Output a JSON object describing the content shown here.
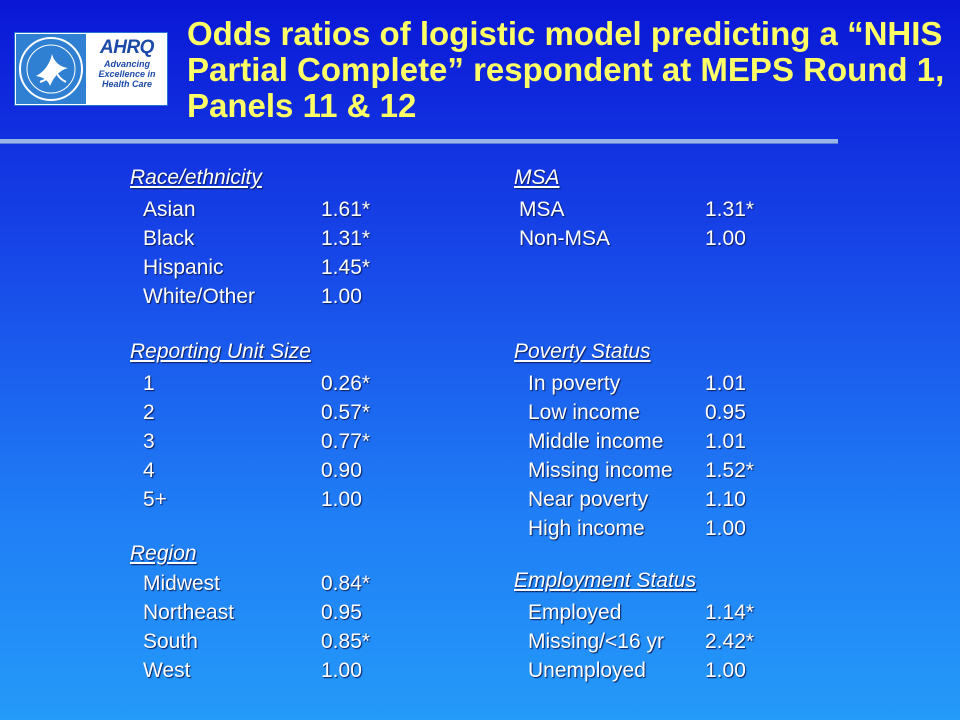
{
  "logo": {
    "seal": "hhs-eagle-seal",
    "letters": "AHRQ",
    "tagline_1": "Advancing",
    "tagline_2": "Excellence in",
    "tagline_3": "Health Care"
  },
  "title": "Odds ratios of logistic model predicting a “NHIS Partial Complete”  respondent at MEPS Round 1, Panels 11 & 12",
  "race": {
    "header": "Race/ethnicity",
    "rows": [
      {
        "label": "Asian",
        "value": "1.61*"
      },
      {
        "label": "Black",
        "value": "1.31*"
      },
      {
        "label": "Hispanic",
        "value": "1.45*"
      },
      {
        "label": "White/Other",
        "value": "1.00"
      }
    ]
  },
  "unit": {
    "header": "Reporting Unit Size",
    "rows": [
      {
        "label": "1",
        "value": "0.26*"
      },
      {
        "label": "2",
        "value": "0.57*"
      },
      {
        "label": "3",
        "value": "0.77*"
      },
      {
        "label": "4",
        "value": "0.90"
      },
      {
        "label": "5+",
        "value": "1.00"
      }
    ]
  },
  "region": {
    "header": "Region",
    "rows": [
      {
        "label": "Midwest",
        "value": "0.84*"
      },
      {
        "label": "Northeast",
        "value": "0.95"
      },
      {
        "label": "South",
        "value": "0.85*"
      },
      {
        "label": "West",
        "value": "1.00"
      }
    ]
  },
  "msa": {
    "header": "MSA ",
    "rows": [
      {
        "label": "MSA",
        "value": "1.31*"
      },
      {
        "label": "Non-MSA",
        "value": "1.00"
      }
    ]
  },
  "poverty": {
    "header": "Poverty Status",
    "rows": [
      {
        "label": "In poverty",
        "value": "1.01"
      },
      {
        "label": "Low income",
        "value": "0.95"
      },
      {
        "label": "Middle income",
        "value": "1.01"
      },
      {
        "label": "Missing income",
        "value": "1.52*"
      },
      {
        "label": "Near poverty",
        "value": "1.10"
      },
      {
        "label": "High income",
        "value": "1.00"
      }
    ]
  },
  "employment": {
    "header": "Employment Status",
    "rows": [
      {
        "label": "Employed",
        "value": "1.14*"
      },
      {
        "label": "Missing/<16 yr",
        "value": "2.42*"
      },
      {
        "label": "Unemployed",
        "value": "1.00"
      }
    ]
  },
  "colors": {
    "title": "#ffff66",
    "text": "#ffffff",
    "background_top": "#0a17d6",
    "background_bottom": "#249af9"
  }
}
